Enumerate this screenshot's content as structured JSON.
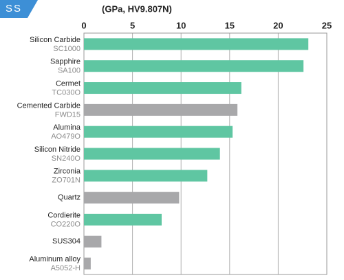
{
  "tab_label": "SS",
  "chart_data": {
    "type": "bar",
    "orientation": "horizontal",
    "title": "(GPa, HV9.807N)",
    "categories": [
      "Silicon Carbide",
      "Sapphire",
      "Cermet",
      "Cemented Carbide",
      "Alumina",
      "Silicon Nitride",
      "Zirconia",
      "Quartz",
      "Cordierite",
      "SUS304",
      "Aluminum alloy"
    ],
    "grades": [
      "SC1000",
      "SA100",
      "TC030O",
      "FWD15",
      "AO479O",
      "SN240O",
      "ZO701N",
      null,
      "CO220O",
      null,
      "A5052-H"
    ],
    "values": [
      23.1,
      22.6,
      16.2,
      15.8,
      15.3,
      14.0,
      12.7,
      9.8,
      8.0,
      1.8,
      0.7
    ],
    "colors": [
      "#5fc6a2",
      "#5fc6a2",
      "#5fc6a2",
      "#a8a8aa",
      "#5fc6a2",
      "#5fc6a2",
      "#5fc6a2",
      "#a8a8aa",
      "#5fc6a2",
      "#a8a8aa",
      "#a8a8aa"
    ],
    "xlim": [
      0,
      25
    ],
    "xticks": [
      0,
      5,
      10,
      15,
      20,
      25
    ],
    "grid": true
  }
}
